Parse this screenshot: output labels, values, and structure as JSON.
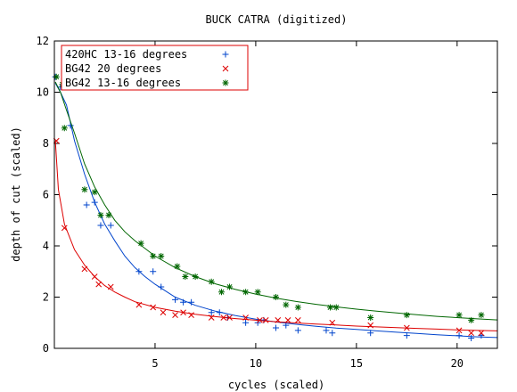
{
  "chart_data": {
    "type": "scatter",
    "title": "BUCK CATRA (digitized)",
    "xlabel": "cycles (scaled)",
    "ylabel": "depth of cut (scaled)",
    "xlim": [
      0,
      22
    ],
    "ylim": [
      0,
      12
    ],
    "xticks": [
      5,
      10,
      15,
      20
    ],
    "yticks": [
      0,
      2,
      4,
      6,
      8,
      10,
      12
    ],
    "grid": false,
    "legend_position": "top-left",
    "series": [
      {
        "name": "420HC 13-16 degrees",
        "marker": "plus",
        "color": "#0044cc",
        "points": [
          [
            0.05,
            10.6
          ],
          [
            0.3,
            10.2
          ],
          [
            0.8,
            8.7
          ],
          [
            1.6,
            5.6
          ],
          [
            2.0,
            5.7
          ],
          [
            2.3,
            4.8
          ],
          [
            2.8,
            4.8
          ],
          [
            4.2,
            3.0
          ],
          [
            4.9,
            3.0
          ],
          [
            5.3,
            2.4
          ],
          [
            6.0,
            1.9
          ],
          [
            6.4,
            1.8
          ],
          [
            6.8,
            1.8
          ],
          [
            7.8,
            1.4
          ],
          [
            8.2,
            1.4
          ],
          [
            8.6,
            1.2
          ],
          [
            9.5,
            1.0
          ],
          [
            10.1,
            1.0
          ],
          [
            10.4,
            1.1
          ],
          [
            11.0,
            0.8
          ],
          [
            11.5,
            0.9
          ],
          [
            12.1,
            0.7
          ],
          [
            13.5,
            0.7
          ],
          [
            13.8,
            0.6
          ],
          [
            15.7,
            0.6
          ],
          [
            17.5,
            0.5
          ],
          [
            20.1,
            0.5
          ],
          [
            20.7,
            0.4
          ],
          [
            21.2,
            0.5
          ]
        ],
        "fit": [
          [
            0.05,
            10.35
          ],
          [
            0.3,
            10.0
          ],
          [
            0.6,
            9.5
          ],
          [
            1.0,
            8.1
          ],
          [
            1.5,
            6.8
          ],
          [
            2.0,
            5.7
          ],
          [
            2.5,
            4.85
          ],
          [
            3.0,
            4.2
          ],
          [
            3.5,
            3.6
          ],
          [
            4.0,
            3.15
          ],
          [
            4.5,
            2.8
          ],
          [
            5.0,
            2.5
          ],
          [
            6.0,
            2.0
          ],
          [
            7.0,
            1.68
          ],
          [
            8.0,
            1.45
          ],
          [
            9.0,
            1.28
          ],
          [
            10.0,
            1.14
          ],
          [
            11.0,
            1.03
          ],
          [
            12.0,
            0.94
          ],
          [
            13.0,
            0.86
          ],
          [
            14.0,
            0.79
          ],
          [
            15.0,
            0.74
          ],
          [
            16.0,
            0.68
          ],
          [
            17.0,
            0.63
          ],
          [
            18.0,
            0.58
          ],
          [
            19.0,
            0.53
          ],
          [
            20.0,
            0.49
          ],
          [
            21.0,
            0.45
          ],
          [
            22.0,
            0.42
          ]
        ]
      },
      {
        "name": "BG42 20 degrees",
        "marker": "cross",
        "color": "#dd0000",
        "points": [
          [
            0.1,
            8.1
          ],
          [
            0.5,
            4.7
          ],
          [
            1.5,
            3.1
          ],
          [
            2.0,
            2.8
          ],
          [
            2.2,
            2.5
          ],
          [
            2.8,
            2.4
          ],
          [
            4.2,
            1.7
          ],
          [
            4.9,
            1.6
          ],
          [
            5.4,
            1.4
          ],
          [
            6.0,
            1.3
          ],
          [
            6.4,
            1.4
          ],
          [
            6.8,
            1.3
          ],
          [
            7.8,
            1.2
          ],
          [
            8.4,
            1.2
          ],
          [
            8.7,
            1.2
          ],
          [
            9.5,
            1.2
          ],
          [
            10.2,
            1.1
          ],
          [
            10.5,
            1.1
          ],
          [
            11.1,
            1.1
          ],
          [
            11.6,
            1.1
          ],
          [
            12.1,
            1.1
          ],
          [
            13.8,
            1.0
          ],
          [
            15.7,
            0.9
          ],
          [
            17.5,
            0.8
          ],
          [
            20.1,
            0.7
          ],
          [
            20.7,
            0.6
          ],
          [
            21.2,
            0.6
          ]
        ],
        "fit": [
          [
            0.05,
            8.1
          ],
          [
            0.2,
            6.2
          ],
          [
            0.5,
            4.85
          ],
          [
            1.0,
            3.85
          ],
          [
            1.5,
            3.25
          ],
          [
            2.0,
            2.8
          ],
          [
            2.5,
            2.45
          ],
          [
            3.0,
            2.2
          ],
          [
            3.5,
            2.0
          ],
          [
            4.0,
            1.82
          ],
          [
            5.0,
            1.6
          ],
          [
            6.0,
            1.45
          ],
          [
            7.0,
            1.33
          ],
          [
            8.0,
            1.24
          ],
          [
            9.0,
            1.16
          ],
          [
            10.0,
            1.1
          ],
          [
            11.0,
            1.04
          ],
          [
            12.0,
            0.99
          ],
          [
            13.0,
            0.95
          ],
          [
            14.0,
            0.91
          ],
          [
            15.0,
            0.87
          ],
          [
            16.0,
            0.84
          ],
          [
            17.0,
            0.81
          ],
          [
            18.0,
            0.78
          ],
          [
            19.0,
            0.75
          ],
          [
            20.0,
            0.72
          ],
          [
            21.0,
            0.7
          ],
          [
            22.0,
            0.68
          ]
        ]
      },
      {
        "name": "BG42  13-16 degrees",
        "marker": "star",
        "color": "#006600",
        "points": [
          [
            0.1,
            10.6
          ],
          [
            0.4,
            10.3
          ],
          [
            0.5,
            8.6
          ],
          [
            1.5,
            6.2
          ],
          [
            2.0,
            6.1
          ],
          [
            2.3,
            5.2
          ],
          [
            2.7,
            5.2
          ],
          [
            4.3,
            4.1
          ],
          [
            4.9,
            3.6
          ],
          [
            5.3,
            3.6
          ],
          [
            6.1,
            3.2
          ],
          [
            6.5,
            2.8
          ],
          [
            7.0,
            2.8
          ],
          [
            7.8,
            2.6
          ],
          [
            8.3,
            2.2
          ],
          [
            8.7,
            2.4
          ],
          [
            9.5,
            2.2
          ],
          [
            10.1,
            2.2
          ],
          [
            11.0,
            2.0
          ],
          [
            11.5,
            1.7
          ],
          [
            12.1,
            1.6
          ],
          [
            13.7,
            1.6
          ],
          [
            14.0,
            1.6
          ],
          [
            15.7,
            1.2
          ],
          [
            17.5,
            1.3
          ],
          [
            20.1,
            1.3
          ],
          [
            20.7,
            1.1
          ],
          [
            21.2,
            1.3
          ]
        ],
        "fit": [
          [
            0.05,
            10.4
          ],
          [
            0.3,
            10.0
          ],
          [
            0.6,
            9.3
          ],
          [
            1.0,
            8.4
          ],
          [
            1.5,
            7.2
          ],
          [
            2.0,
            6.3
          ],
          [
            2.5,
            5.6
          ],
          [
            3.0,
            5.0
          ],
          [
            3.5,
            4.55
          ],
          [
            4.0,
            4.2
          ],
          [
            4.5,
            3.9
          ],
          [
            5.0,
            3.6
          ],
          [
            6.0,
            3.15
          ],
          [
            7.0,
            2.8
          ],
          [
            8.0,
            2.52
          ],
          [
            9.0,
            2.3
          ],
          [
            10.0,
            2.12
          ],
          [
            11.0,
            1.96
          ],
          [
            12.0,
            1.83
          ],
          [
            13.0,
            1.72
          ],
          [
            14.0,
            1.62
          ],
          [
            15.0,
            1.53
          ],
          [
            16.0,
            1.45
          ],
          [
            17.0,
            1.38
          ],
          [
            18.0,
            1.31
          ],
          [
            19.0,
            1.25
          ],
          [
            20.0,
            1.2
          ],
          [
            21.0,
            1.15
          ],
          [
            22.0,
            1.11
          ]
        ]
      }
    ]
  }
}
